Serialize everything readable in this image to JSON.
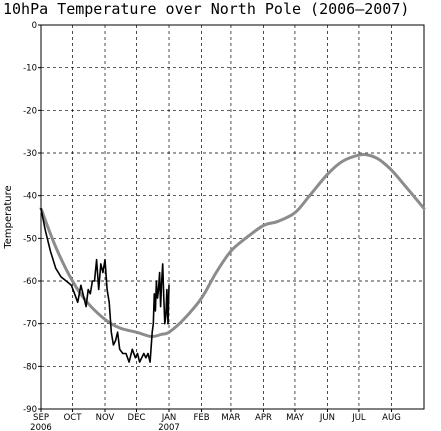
{
  "chart_data": {
    "type": "line",
    "title": "10hPa Temperature over North Pole (2006—2007)",
    "xlabel": "",
    "ylabel": "Temperature",
    "ylim": [
      -90,
      0
    ],
    "yticks": [
      0,
      -10,
      -20,
      -30,
      -40,
      -50,
      -60,
      -70,
      -80,
      -90
    ],
    "xticks": [
      {
        "label": "SEP",
        "sub": "2006"
      },
      {
        "label": "OCT",
        "sub": ""
      },
      {
        "label": "NOV",
        "sub": ""
      },
      {
        "label": "DEC",
        "sub": ""
      },
      {
        "label": "JAN",
        "sub": "2007"
      },
      {
        "label": "FEB",
        "sub": ""
      },
      {
        "label": "MAR",
        "sub": ""
      },
      {
        "label": "APR",
        "sub": ""
      },
      {
        "label": "MAY",
        "sub": ""
      },
      {
        "label": "JUN",
        "sub": ""
      },
      {
        "label": "JUL",
        "sub": ""
      },
      {
        "label": "AUG",
        "sub": ""
      }
    ],
    "grid": true,
    "series": [
      {
        "color": "#8c8c8c",
        "x": [
          "2006-09-01",
          "2006-09-15",
          "2006-10-01",
          "2006-10-15",
          "2006-11-01",
          "2006-11-15",
          "2006-12-01",
          "2006-12-15",
          "2006-12-25",
          "2007-01-01",
          "2007-01-15",
          "2007-02-01",
          "2007-02-15",
          "2007-03-01",
          "2007-03-15",
          "2007-04-01",
          "2007-04-15",
          "2007-05-01",
          "2007-05-15",
          "2007-06-01",
          "2007-06-15",
          "2007-07-01",
          "2007-07-10",
          "2007-07-20",
          "2007-08-01",
          "2007-08-15",
          "2007-09-01"
        ],
        "values": [
          -43,
          -52,
          -60,
          -65,
          -69,
          -71,
          -72,
          -73,
          -72.5,
          -72,
          -69,
          -64,
          -58,
          -53,
          -50,
          -47,
          -46,
          -44,
          -40,
          -35,
          -32,
          -30.5,
          -30.5,
          -31.5,
          -34,
          -38,
          -43
        ]
      },
      {
        "color": "#000000",
        "x": [
          "2006-09-01",
          "2006-09-05",
          "2006-09-10",
          "2006-09-15",
          "2006-09-20",
          "2006-09-25",
          "2006-09-30",
          "2006-10-03",
          "2006-10-06",
          "2006-10-09",
          "2006-10-12",
          "2006-10-14",
          "2006-10-16",
          "2006-10-18",
          "2006-10-20",
          "2006-10-22",
          "2006-10-24",
          "2006-10-26",
          "2006-10-28",
          "2006-10-30",
          "2006-11-01",
          "2006-11-03",
          "2006-11-05",
          "2006-11-07",
          "2006-11-09",
          "2006-11-11",
          "2006-11-13",
          "2006-11-15",
          "2006-11-18",
          "2006-11-21",
          "2006-11-24",
          "2006-11-27",
          "2006-11-30",
          "2006-12-02",
          "2006-12-04",
          "2006-12-06",
          "2006-12-08",
          "2006-12-10",
          "2006-12-12",
          "2006-12-14",
          "2006-12-16",
          "2006-12-17",
          "2006-12-18",
          "2006-12-19",
          "2006-12-20",
          "2006-12-21",
          "2006-12-22",
          "2006-12-23",
          "2006-12-24",
          "2006-12-25",
          "2006-12-26",
          "2006-12-27",
          "2006-12-28",
          "2006-12-29",
          "2006-12-30",
          "2006-12-31",
          "2007-01-01"
        ],
        "values": [
          -43,
          -48,
          -53,
          -57,
          -59,
          -60,
          -61,
          -63,
          -65,
          -61,
          -64,
          -66,
          -62,
          -63,
          -60,
          -60,
          -55,
          -62,
          -56,
          -58,
          -55,
          -62,
          -65,
          -72,
          -75,
          -74,
          -72,
          -76,
          -77,
          -77,
          -79,
          -76,
          -78,
          -77,
          -79,
          -78,
          -77,
          -78,
          -77,
          -79,
          -72,
          -70,
          -63,
          -67,
          -60,
          -64,
          -62,
          -58,
          -66,
          -60,
          -56,
          -64,
          -70,
          -68,
          -62,
          -70,
          -61
        ]
      }
    ]
  }
}
